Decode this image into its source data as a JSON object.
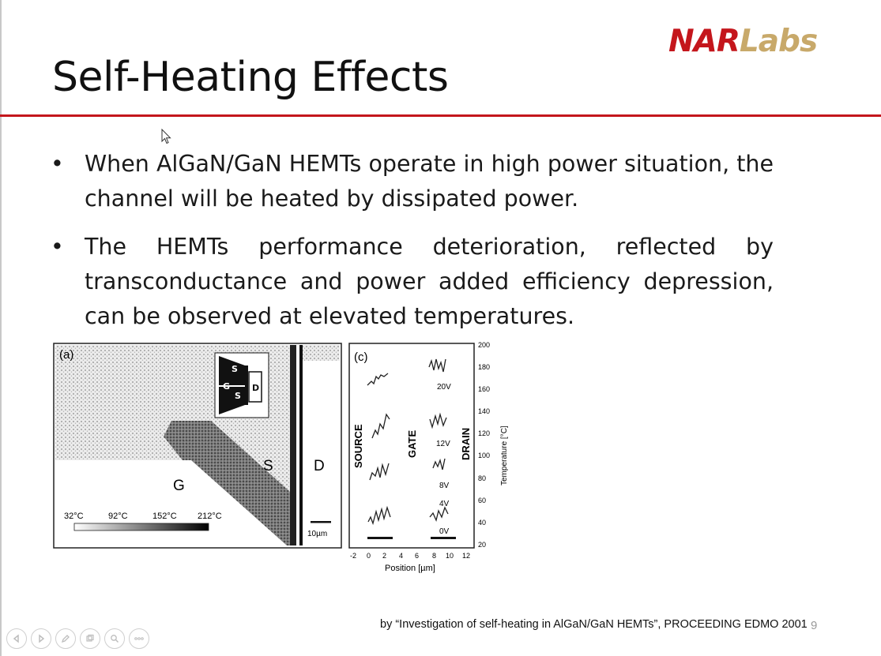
{
  "slide": {
    "logo": {
      "part1": "NAR",
      "part2": "Labs"
    },
    "title": "Self-Heating Effects",
    "bullets": [
      {
        "marker": "•",
        "text": "When AlGaN/GaN HEMTs operate in high power situation, the channel will be heated by dissipated power."
      },
      {
        "marker": "•",
        "text": "The HEMTs performance deterioration, reflected by transconductance and power added efficiency depression, can be observed at elevated temperatures."
      }
    ],
    "footer": "by “Investigation of self-heating in AlGaN/GaN HEMTs”, PROCEEDING  EDMO 2001",
    "page_number": "9"
  },
  "figure_a": {
    "panel_label": "(a)",
    "labels": {
      "g": "G",
      "s": "S",
      "d": "D"
    },
    "inset": {
      "s": "S",
      "g": "G",
      "d": "D"
    },
    "scale_ticks": [
      "32°C",
      "92°C",
      "152°C",
      "212°C"
    ],
    "scale_bar": "10µm"
  },
  "figure_c": {
    "panel_label": "(c)",
    "region_labels": {
      "source": "SOURCE",
      "gate": "GATE",
      "drain": "DRAIN"
    },
    "voltage_labels": [
      "20V",
      "12V",
      "8V",
      "4V",
      "0V"
    ],
    "x_ticks": [
      "-2",
      "0",
      "2",
      "4",
      "6",
      "8",
      "10",
      "12"
    ],
    "x_label": "Position [µm]",
    "y_ticks": [
      "20",
      "40",
      "60",
      "80",
      "100",
      "120",
      "140",
      "160",
      "180",
      "200"
    ],
    "y_label": "Temperature [°C]"
  },
  "navigation": {
    "icons": [
      "prev-slide-icon",
      "next-slide-icon",
      "pen-icon",
      "slides-view-icon",
      "zoom-icon",
      "more-options-icon"
    ]
  }
}
